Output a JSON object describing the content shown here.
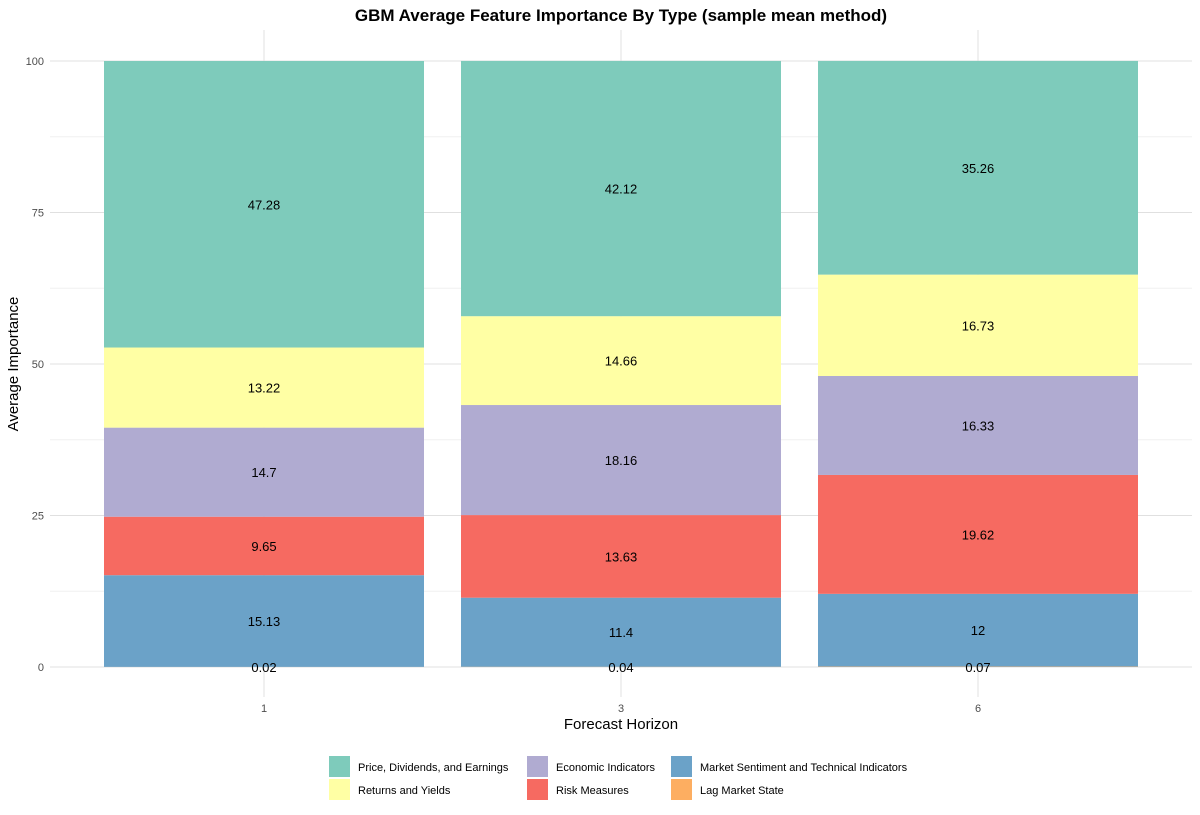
{
  "chart_data": {
    "type": "bar",
    "stacked": true,
    "title": "GBM Average Feature Importance By Type (sample mean method)",
    "xlabel": "Forecast Horizon",
    "ylabel": "Average Importance",
    "categories": [
      "1",
      "3",
      "6"
    ],
    "ylim": [
      0,
      100
    ],
    "yticks": [
      0,
      25,
      50,
      75,
      100
    ],
    "grid": true,
    "legend_position": "bottom",
    "series": [
      {
        "name": "Lag Market State",
        "color": "#fdae61",
        "values": [
          0.02,
          0.04,
          0.07
        ],
        "labels": [
          "0.02",
          "0.04",
          "0.07"
        ]
      },
      {
        "name": "Market Sentiment and Technical Indicators",
        "color": "#6ba2c8",
        "values": [
          15.13,
          11.4,
          12
        ],
        "labels": [
          "15.13",
          "11.4",
          "12"
        ]
      },
      {
        "name": "Risk Measures",
        "color": "#f66a61",
        "values": [
          9.65,
          13.63,
          19.62
        ],
        "labels": [
          "9.65",
          "13.63",
          "19.62"
        ]
      },
      {
        "name": "Economic Indicators",
        "color": "#b0abd1",
        "values": [
          14.7,
          18.16,
          16.33
        ],
        "labels": [
          "14.7",
          "18.16",
          "16.33"
        ]
      },
      {
        "name": "Returns and Yields",
        "color": "#ffffa4",
        "values": [
          13.22,
          14.66,
          16.73
        ],
        "labels": [
          "13.22",
          "14.66",
          "16.73"
        ]
      },
      {
        "name": "Price, Dividends, and Earnings",
        "color": "#7ecbbb",
        "values": [
          47.28,
          42.12,
          35.26
        ],
        "labels": [
          "47.28",
          "42.12",
          "35.26"
        ]
      }
    ],
    "legend_order": [
      "Price, Dividends, and Earnings",
      "Returns and Yields",
      "Economic Indicators",
      "Risk Measures",
      "Market Sentiment and Technical Indicators",
      "Lag Market State"
    ]
  }
}
